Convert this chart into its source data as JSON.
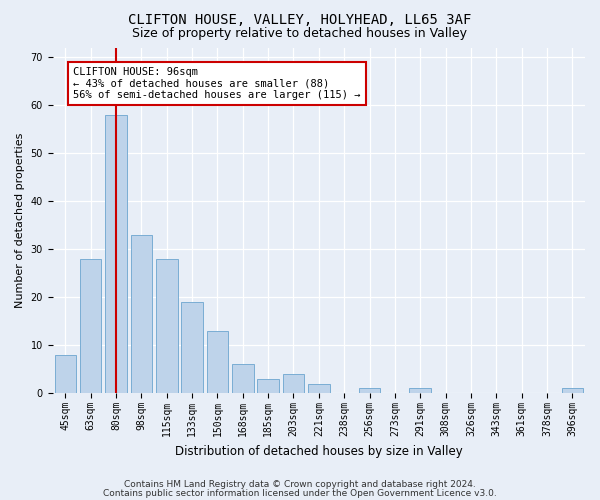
{
  "title1": "CLIFTON HOUSE, VALLEY, HOLYHEAD, LL65 3AF",
  "title2": "Size of property relative to detached houses in Valley",
  "xlabel": "Distribution of detached houses by size in Valley",
  "ylabel": "Number of detached properties",
  "categories": [
    "45sqm",
    "63sqm",
    "80sqm",
    "98sqm",
    "115sqm",
    "133sqm",
    "150sqm",
    "168sqm",
    "185sqm",
    "203sqm",
    "221sqm",
    "238sqm",
    "256sqm",
    "273sqm",
    "291sqm",
    "308sqm",
    "326sqm",
    "343sqm",
    "361sqm",
    "378sqm",
    "396sqm"
  ],
  "values": [
    8,
    28,
    58,
    33,
    28,
    19,
    13,
    6,
    3,
    4,
    2,
    0,
    1,
    0,
    1,
    0,
    0,
    0,
    0,
    0,
    1
  ],
  "bar_color": "#bed3ea",
  "bar_edge_color": "#7aadd4",
  "highlight_bar_index": 2,
  "highlight_line_color": "#cc0000",
  "ylim": [
    0,
    72
  ],
  "yticks": [
    0,
    10,
    20,
    30,
    40,
    50,
    60,
    70
  ],
  "annotation_text": "CLIFTON HOUSE: 96sqm\n← 43% of detached houses are smaller (88)\n56% of semi-detached houses are larger (115) →",
  "annotation_box_color": "#ffffff",
  "annotation_box_edge": "#cc0000",
  "footer1": "Contains HM Land Registry data © Crown copyright and database right 2024.",
  "footer2": "Contains public sector information licensed under the Open Government Licence v3.0.",
  "bg_color": "#e8eef7",
  "grid_color": "#ffffff",
  "title1_fontsize": 10,
  "title2_fontsize": 9,
  "xlabel_fontsize": 8.5,
  "ylabel_fontsize": 8,
  "tick_fontsize": 7,
  "footer_fontsize": 6.5,
  "annotation_fontsize": 7.5
}
